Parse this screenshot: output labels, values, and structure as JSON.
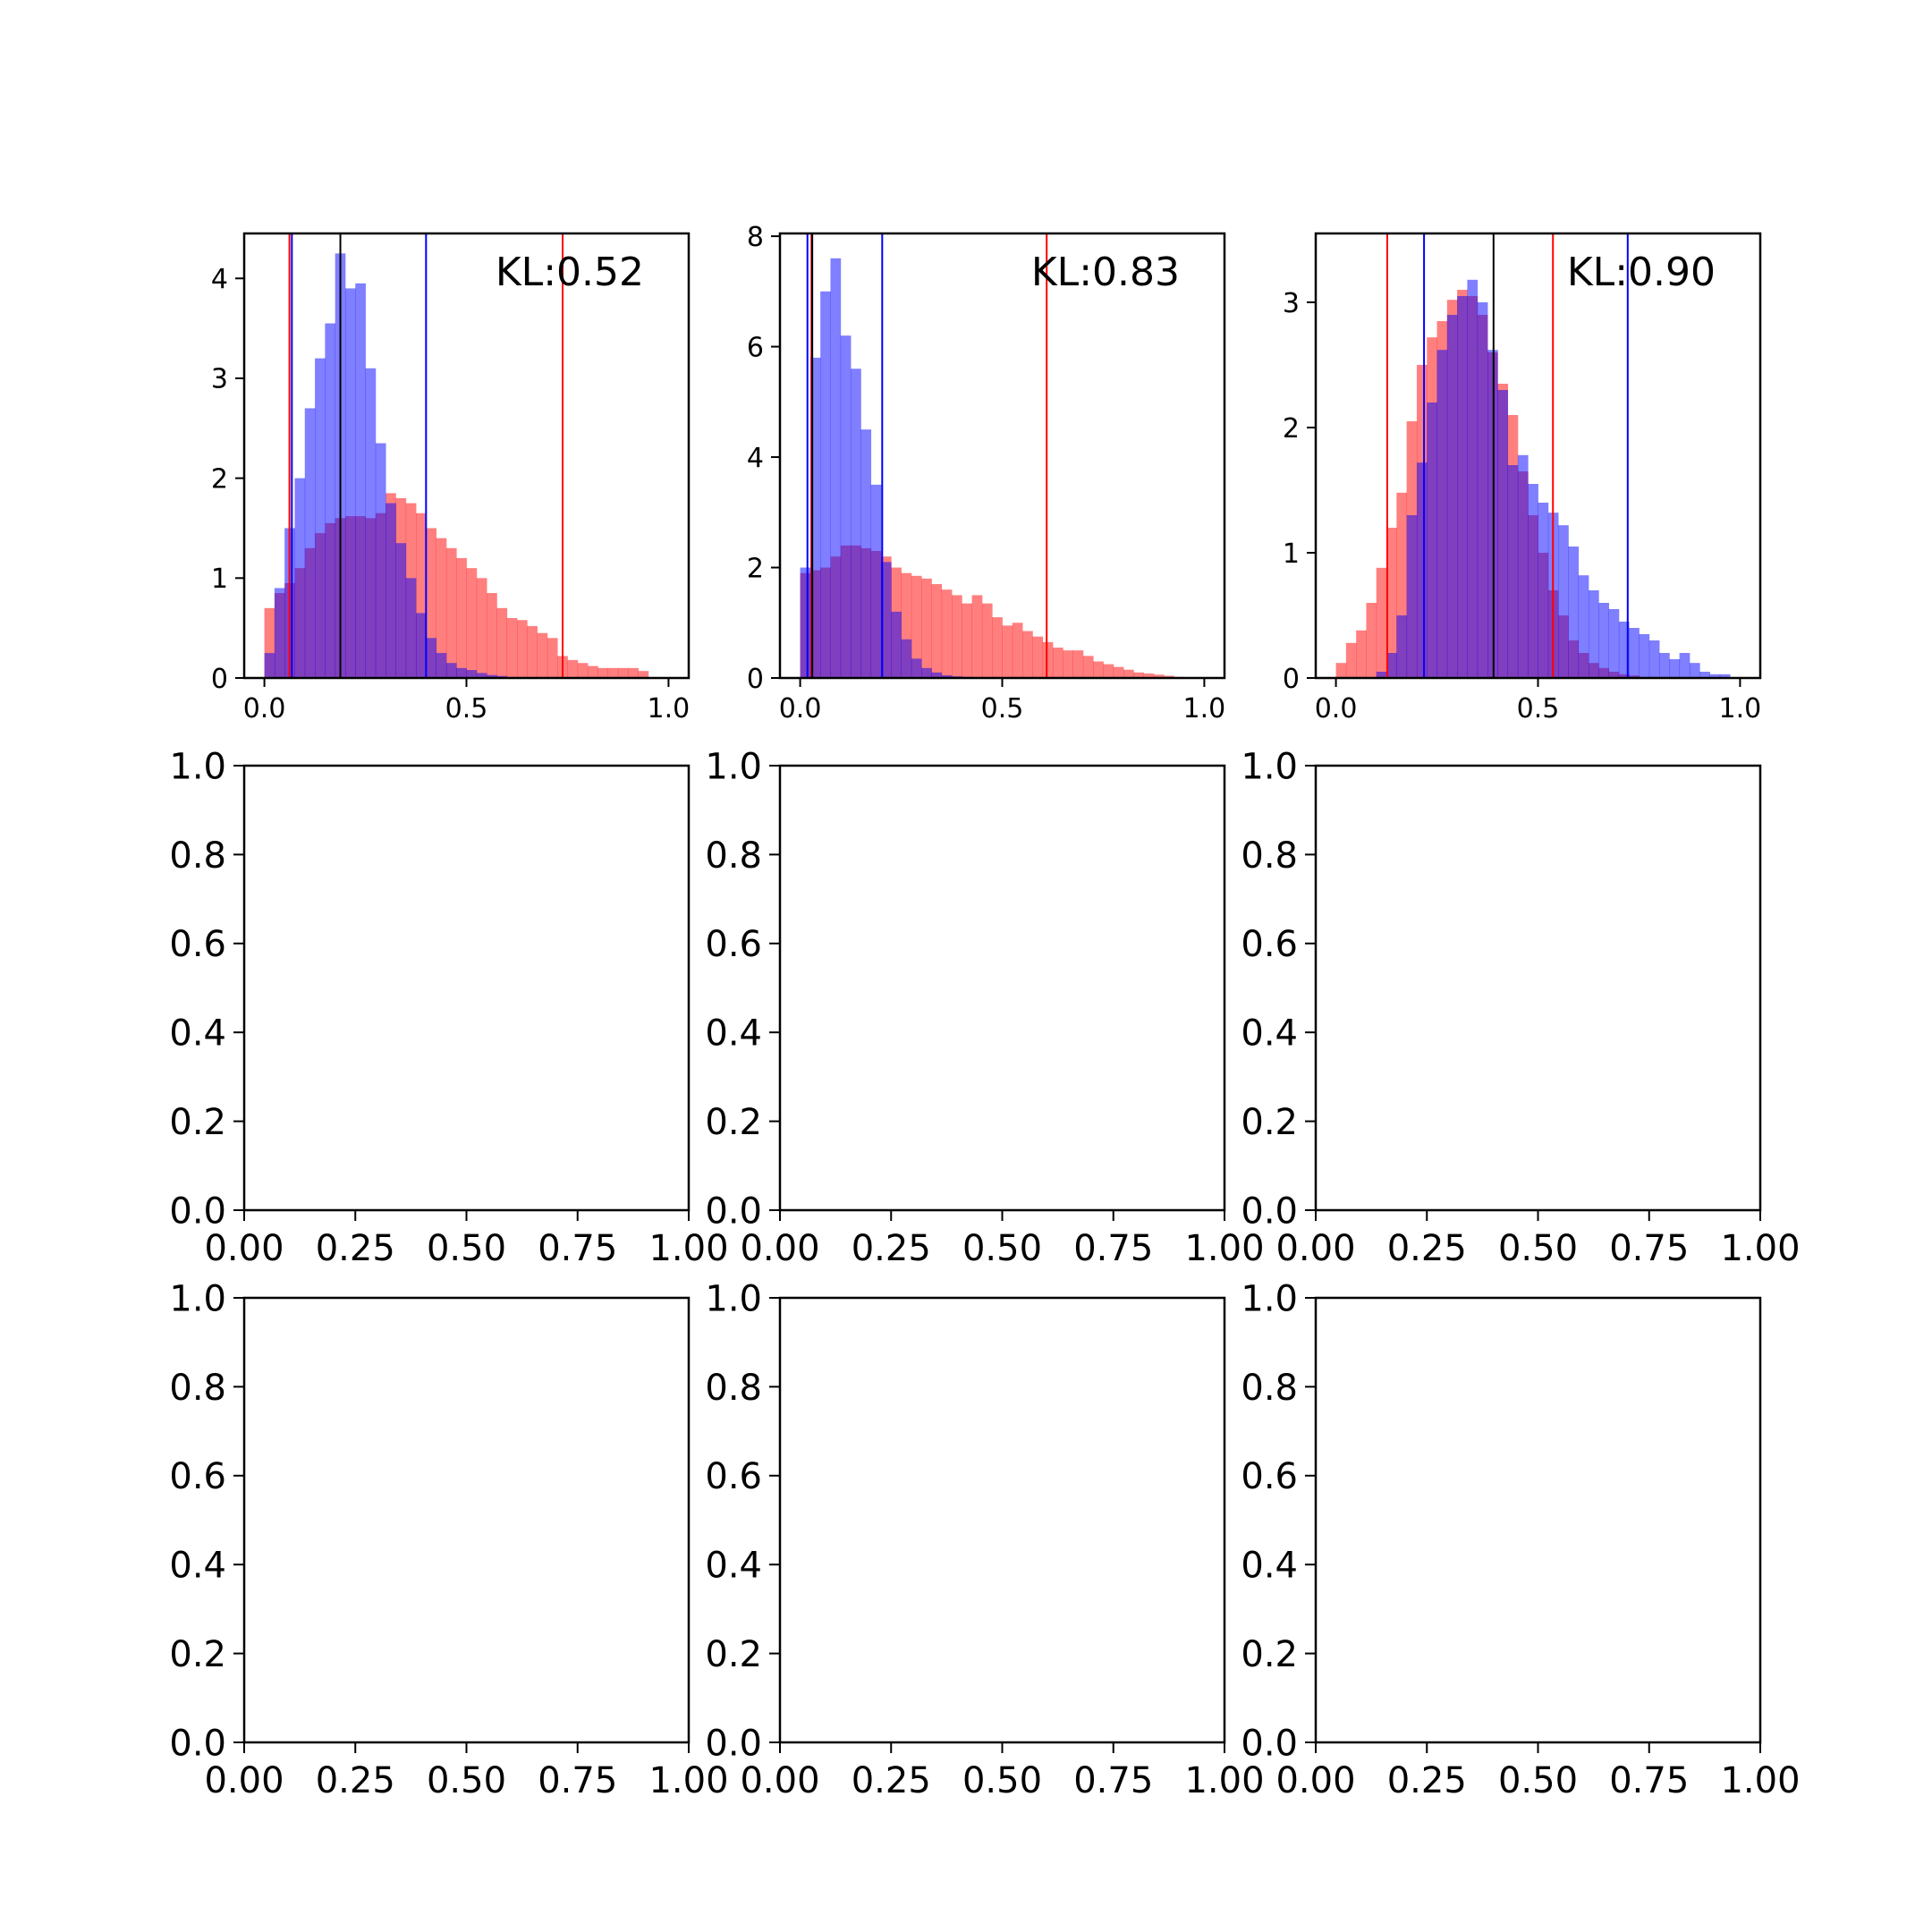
{
  "chart_data": [
    {
      "type": "bar",
      "annotation": "KL:0.52",
      "xlim": [
        -0.05,
        1.05
      ],
      "ylim": [
        0,
        4.45
      ],
      "xticks": [
        0.0,
        0.5,
        1.0
      ],
      "xtick_labels": [
        "0.0",
        "0.5",
        "1.0"
      ],
      "yticks": [
        0,
        1,
        2,
        3,
        4
      ],
      "ytick_labels": [
        "0",
        "1",
        "2",
        "3",
        "4"
      ],
      "bin_start": 0.0,
      "bin_width": 0.025,
      "series": [
        {
          "color": "#ff0000",
          "alpha": 0.5,
          "values": [
            0.7,
            0.85,
            0.95,
            1.1,
            1.3,
            1.45,
            1.55,
            1.6,
            1.62,
            1.62,
            1.6,
            1.65,
            1.85,
            1.8,
            1.75,
            1.65,
            1.5,
            1.4,
            1.3,
            1.2,
            1.1,
            1.0,
            0.85,
            0.7,
            0.6,
            0.58,
            0.52,
            0.45,
            0.4,
            0.22,
            0.18,
            0.15,
            0.12,
            0.1,
            0.1,
            0.1,
            0.1,
            0.07,
            0.0,
            0.0
          ]
        },
        {
          "color": "#0000ff",
          "alpha": 0.5,
          "values": [
            0.25,
            0.9,
            1.5,
            2.0,
            2.7,
            3.2,
            3.55,
            4.25,
            3.9,
            3.95,
            3.1,
            2.35,
            1.75,
            1.35,
            1.0,
            0.65,
            0.4,
            0.25,
            0.15,
            0.1,
            0.08,
            0.05,
            0.03,
            0.02,
            0.0,
            0.0,
            0.0,
            0.0,
            0.0,
            0.0,
            0.0,
            0.0,
            0.0,
            0.0,
            0.0,
            0.0,
            0.0,
            0.0,
            0.0,
            0.0
          ]
        }
      ],
      "vlines": [
        {
          "x": 0.062,
          "color": "#ff0000"
        },
        {
          "x": 0.738,
          "color": "#ff0000"
        },
        {
          "x": 0.068,
          "color": "#0000ff"
        },
        {
          "x": 0.4,
          "color": "#0000ff"
        },
        {
          "x": 0.188,
          "color": "#000000"
        }
      ]
    },
    {
      "type": "bar",
      "annotation": "KL:0.83",
      "xlim": [
        -0.05,
        1.05
      ],
      "ylim": [
        0,
        8.05
      ],
      "xticks": [
        0.0,
        0.5,
        1.0
      ],
      "xtick_labels": [
        "0.0",
        "0.5",
        "1.0"
      ],
      "yticks": [
        0,
        2,
        4,
        6,
        8
      ],
      "ytick_labels": [
        "0",
        "2",
        "4",
        "6",
        "8"
      ],
      "bin_start": 0.0,
      "bin_width": 0.025,
      "series": [
        {
          "color": "#ff0000",
          "alpha": 0.5,
          "values": [
            1.9,
            1.95,
            2.0,
            2.2,
            2.4,
            2.4,
            2.35,
            2.3,
            2.2,
            2.0,
            1.9,
            1.85,
            1.8,
            1.7,
            1.6,
            1.5,
            1.35,
            1.5,
            1.35,
            1.1,
            0.95,
            1.0,
            0.85,
            0.75,
            0.65,
            0.55,
            0.5,
            0.5,
            0.4,
            0.3,
            0.25,
            0.2,
            0.15,
            0.1,
            0.08,
            0.06,
            0.04,
            0.02,
            0.0,
            0.0
          ]
        },
        {
          "color": "#0000ff",
          "alpha": 0.5,
          "values": [
            2.0,
            5.8,
            7.0,
            7.6,
            6.2,
            5.6,
            4.5,
            3.5,
            2.1,
            1.2,
            0.7,
            0.35,
            0.18,
            0.1,
            0.05,
            0.03,
            0.02,
            0.01,
            0.0,
            0.0,
            0.0,
            0.0,
            0.0,
            0.0,
            0.0,
            0.0,
            0.0,
            0.0,
            0.0,
            0.0,
            0.0,
            0.0,
            0.0,
            0.0,
            0.0,
            0.0,
            0.0,
            0.0,
            0.0,
            0.0
          ]
        }
      ],
      "vlines": [
        {
          "x": 0.028,
          "color": "#ff0000"
        },
        {
          "x": 0.61,
          "color": "#ff0000"
        },
        {
          "x": 0.018,
          "color": "#0000ff"
        },
        {
          "x": 0.203,
          "color": "#0000ff"
        },
        {
          "x": 0.03,
          "color": "#000000"
        }
      ]
    },
    {
      "type": "bar",
      "annotation": "KL:0.90",
      "xlim": [
        -0.05,
        1.05
      ],
      "ylim": [
        0,
        3.55
      ],
      "xticks": [
        0.0,
        0.5,
        1.0
      ],
      "xtick_labels": [
        "0.0",
        "0.5",
        "1.0"
      ],
      "yticks": [
        0,
        1,
        2,
        3
      ],
      "ytick_labels": [
        "0",
        "1",
        "2",
        "3"
      ],
      "bin_start": 0.0,
      "bin_width": 0.025,
      "series": [
        {
          "color": "#ff0000",
          "alpha": 0.5,
          "values": [
            0.12,
            0.28,
            0.38,
            0.6,
            0.88,
            1.2,
            1.48,
            2.05,
            2.5,
            2.72,
            2.85,
            3.02,
            3.1,
            3.05,
            2.9,
            2.6,
            2.35,
            2.1,
            1.65,
            1.3,
            1.0,
            0.7,
            0.5,
            0.3,
            0.2,
            0.12,
            0.08,
            0.05,
            0.03,
            0.02,
            0.0,
            0.0,
            0.0,
            0.0,
            0.0,
            0.0,
            0.0,
            0.0,
            0.0,
            0.0
          ]
        },
        {
          "color": "#0000ff",
          "alpha": 0.5,
          "values": [
            0.0,
            0.0,
            0.0,
            0.0,
            0.05,
            0.2,
            0.5,
            1.3,
            1.72,
            2.2,
            2.62,
            2.9,
            3.05,
            3.18,
            3.0,
            2.62,
            2.3,
            1.7,
            1.78,
            1.55,
            1.4,
            1.32,
            1.22,
            1.05,
            0.82,
            0.7,
            0.6,
            0.55,
            0.45,
            0.4,
            0.35,
            0.3,
            0.2,
            0.15,
            0.2,
            0.12,
            0.05,
            0.03,
            0.03,
            0.0
          ]
        }
      ],
      "vlines": [
        {
          "x": 0.127,
          "color": "#ff0000"
        },
        {
          "x": 0.537,
          "color": "#ff0000"
        },
        {
          "x": 0.218,
          "color": "#0000ff"
        },
        {
          "x": 0.722,
          "color": "#0000ff"
        },
        {
          "x": 0.39,
          "color": "#000000"
        }
      ]
    },
    {
      "type": "bar",
      "annotation": "",
      "xlim": [
        0,
        1
      ],
      "ylim": [
        0,
        1
      ],
      "xticks": [
        0,
        0.25,
        0.5,
        0.75,
        1.0
      ],
      "xtick_labels": [
        "0.00",
        "0.25",
        "0.50",
        "0.75",
        "1.00"
      ],
      "yticks": [
        0,
        0.2,
        0.4,
        0.6,
        0.8,
        1.0
      ],
      "ytick_labels": [
        "0.0",
        "0.2",
        "0.4",
        "0.6",
        "0.8",
        "1.0"
      ],
      "series": [],
      "vlines": []
    },
    {
      "type": "bar",
      "annotation": "",
      "xlim": [
        0,
        1
      ],
      "ylim": [
        0,
        1
      ],
      "xticks": [
        0,
        0.25,
        0.5,
        0.75,
        1.0
      ],
      "xtick_labels": [
        "0.00",
        "0.25",
        "0.50",
        "0.75",
        "1.00"
      ],
      "yticks": [
        0,
        0.2,
        0.4,
        0.6,
        0.8,
        1.0
      ],
      "ytick_labels": [
        "0.0",
        "0.2",
        "0.4",
        "0.6",
        "0.8",
        "1.0"
      ],
      "series": [],
      "vlines": []
    },
    {
      "type": "bar",
      "annotation": "",
      "xlim": [
        0,
        1
      ],
      "ylim": [
        0,
        1
      ],
      "xticks": [
        0,
        0.25,
        0.5,
        0.75,
        1.0
      ],
      "xtick_labels": [
        "0.00",
        "0.25",
        "0.50",
        "0.75",
        "1.00"
      ],
      "yticks": [
        0,
        0.2,
        0.4,
        0.6,
        0.8,
        1.0
      ],
      "ytick_labels": [
        "0.0",
        "0.2",
        "0.4",
        "0.6",
        "0.8",
        "1.0"
      ],
      "series": [],
      "vlines": []
    },
    {
      "type": "bar",
      "annotation": "",
      "xlim": [
        0,
        1
      ],
      "ylim": [
        0,
        1
      ],
      "xticks": [
        0,
        0.25,
        0.5,
        0.75,
        1.0
      ],
      "xtick_labels": [
        "0.00",
        "0.25",
        "0.50",
        "0.75",
        "1.00"
      ],
      "yticks": [
        0,
        0.2,
        0.4,
        0.6,
        0.8,
        1.0
      ],
      "ytick_labels": [
        "0.0",
        "0.2",
        "0.4",
        "0.6",
        "0.8",
        "1.0"
      ],
      "series": [],
      "vlines": []
    },
    {
      "type": "bar",
      "annotation": "",
      "xlim": [
        0,
        1
      ],
      "ylim": [
        0,
        1
      ],
      "xticks": [
        0,
        0.25,
        0.5,
        0.75,
        1.0
      ],
      "xtick_labels": [
        "0.00",
        "0.25",
        "0.50",
        "0.75",
        "1.00"
      ],
      "yticks": [
        0,
        0.2,
        0.4,
        0.6,
        0.8,
        1.0
      ],
      "ytick_labels": [
        "0.0",
        "0.2",
        "0.4",
        "0.6",
        "0.8",
        "1.0"
      ],
      "series": [],
      "vlines": []
    },
    {
      "type": "bar",
      "annotation": "",
      "xlim": [
        0,
        1
      ],
      "ylim": [
        0,
        1
      ],
      "xticks": [
        0,
        0.25,
        0.5,
        0.75,
        1.0
      ],
      "xtick_labels": [
        "0.00",
        "0.25",
        "0.50",
        "0.75",
        "1.00"
      ],
      "yticks": [
        0,
        0.2,
        0.4,
        0.6,
        0.8,
        1.0
      ],
      "ytick_labels": [
        "0.0",
        "0.2",
        "0.4",
        "0.6",
        "0.8",
        "1.0"
      ],
      "series": [],
      "vlines": []
    }
  ]
}
